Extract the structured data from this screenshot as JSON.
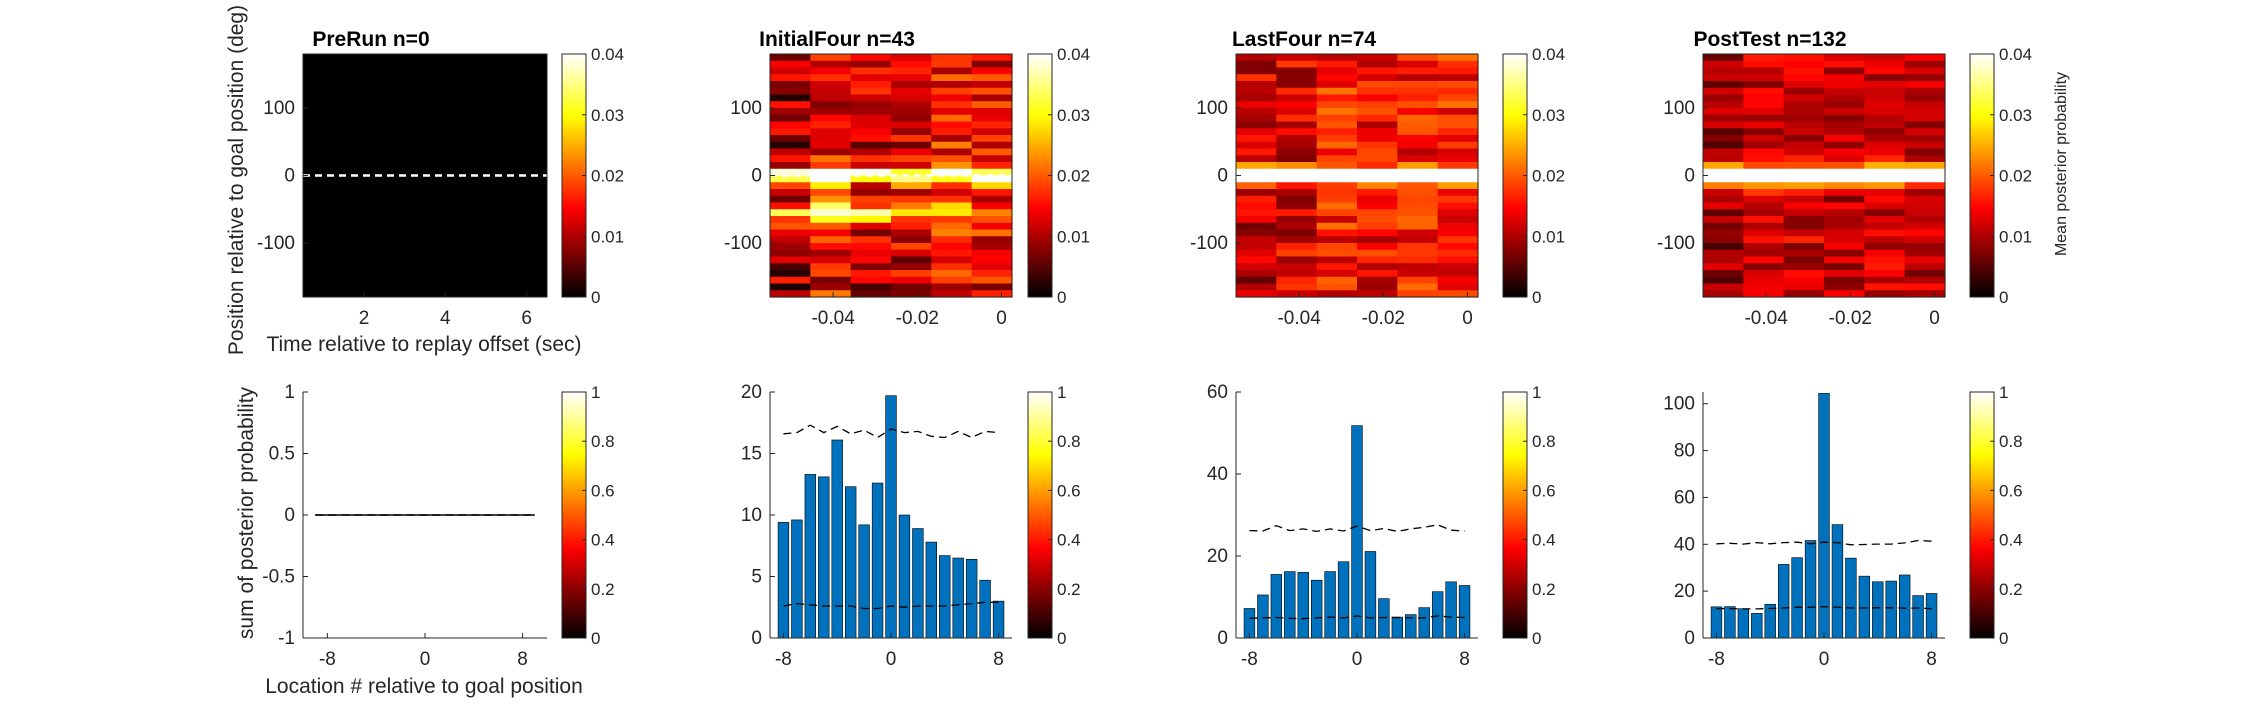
{
  "chart_data": [
    {
      "type": "heatmap",
      "title": "PreRun n=0",
      "xlabel": "Time relative to replay offset (sec)",
      "ylabel": "Position relative to goal position (deg)",
      "xticks": [
        "2",
        "4",
        "6"
      ],
      "yticks": [
        "100",
        "0",
        "-100"
      ],
      "xlim": [
        0.5,
        6.5
      ],
      "ylim": [
        -180,
        180
      ],
      "reference_line_y": 0,
      "values": "all 0",
      "colorbar": {
        "ticks": [
          "0",
          "0.01",
          "0.02",
          "0.03",
          "0.04"
        ],
        "range": [
          0,
          0.04
        ],
        "title": ""
      }
    },
    {
      "type": "heatmap",
      "title": "InitialFour n=43",
      "xticks": [
        "-0.04",
        "-0.02",
        "0"
      ],
      "yticks": [
        "100",
        "0",
        "-100"
      ],
      "xlim": [
        -0.055,
        0.0025
      ],
      "ylim": [
        -180,
        180
      ],
      "reference_line_y": 0,
      "colorbar": {
        "ticks": [
          "0",
          "0.01",
          "0.02",
          "0.03",
          "0.04"
        ],
        "range": [
          0,
          0.04
        ],
        "title": ""
      }
    },
    {
      "type": "heatmap",
      "title": "LastFour n=74",
      "xticks": [
        "-0.04",
        "-0.02",
        "0"
      ],
      "yticks": [
        "100",
        "0",
        "-100"
      ],
      "xlim": [
        -0.055,
        0.0025
      ],
      "ylim": [
        -180,
        180
      ],
      "colorbar": {
        "ticks": [
          "0",
          "0.01",
          "0.02",
          "0.03",
          "0.04"
        ],
        "range": [
          0,
          0.04
        ],
        "title": ""
      }
    },
    {
      "type": "heatmap",
      "title": "PostTest n=132",
      "xticks": [
        "-0.04",
        "-0.02",
        "0"
      ],
      "yticks": [
        "100",
        "0",
        "-100"
      ],
      "xlim": [
        -0.055,
        0.0025
      ],
      "ylim": [
        -180,
        180
      ],
      "colorbar": {
        "ticks": [
          "0",
          "0.01",
          "0.02",
          "0.03",
          "0.04"
        ],
        "range": [
          0,
          0.04
        ],
        "title": "Mean posterior probability"
      }
    },
    {
      "type": "bar",
      "xlabel": "Location # relative to goal position",
      "ylabel": "sum of posterior probability",
      "xticks": [
        "-8",
        "0",
        "8"
      ],
      "yticks": [
        "1",
        "0.5",
        "0",
        "-0.5",
        "-1"
      ],
      "xlim": [
        -10,
        10
      ],
      "ylim": [
        -1,
        1
      ],
      "categories": [
        -9,
        -8,
        -7,
        -6,
        -5,
        -4,
        -3,
        -2,
        -1,
        0,
        1,
        2,
        3,
        4,
        5,
        6,
        7,
        8,
        9
      ],
      "values": [
        0,
        0,
        0,
        0,
        0,
        0,
        0,
        0,
        0,
        0,
        0,
        0,
        0,
        0,
        0,
        0,
        0,
        0,
        0
      ],
      "upper_dashed": [
        0,
        0,
        0,
        0,
        0,
        0,
        0,
        0,
        0,
        0,
        0,
        0,
        0,
        0,
        0,
        0,
        0,
        0,
        0
      ],
      "lower_dashed": [
        0,
        0,
        0,
        0,
        0,
        0,
        0,
        0,
        0,
        0,
        0,
        0,
        0,
        0,
        0,
        0,
        0,
        0,
        0
      ],
      "colorbar": {
        "ticks": [
          "0",
          "0.2",
          "0.4",
          "0.6",
          "0.8",
          "1"
        ],
        "range": [
          0,
          1
        ]
      }
    },
    {
      "type": "bar",
      "xticks": [
        "-8",
        "0",
        "8"
      ],
      "yticks": [
        "20",
        "15",
        "10",
        "5",
        "0"
      ],
      "xlim": [
        -9,
        9
      ],
      "ylim": [
        0,
        20
      ],
      "categories": [
        -8,
        -7,
        -6,
        -5,
        -4,
        -3,
        -2,
        -1,
        0,
        1,
        2,
        3,
        4,
        5,
        6,
        7,
        8
      ],
      "values": [
        9.4,
        9.6,
        13.3,
        13.1,
        16.1,
        12.3,
        9.2,
        12.6,
        19.7,
        10.0,
        8.9,
        7.8,
        6.7,
        6.5,
        6.4,
        4.7,
        3.0
      ],
      "upper_dashed": [
        16.6,
        16.7,
        17.3,
        16.7,
        17.2,
        16.6,
        16.9,
        16.3,
        17.0,
        16.7,
        16.8,
        16.4,
        16.3,
        16.8,
        16.3,
        16.8,
        16.7
      ],
      "lower_dashed": [
        2.6,
        2.8,
        2.7,
        2.6,
        2.6,
        2.6,
        2.4,
        2.4,
        2.6,
        2.5,
        2.6,
        2.6,
        2.6,
        2.7,
        2.8,
        2.9,
        2.9
      ],
      "colorbar": {
        "ticks": [
          "0",
          "0.2",
          "0.4",
          "0.6",
          "0.8",
          "1"
        ],
        "range": [
          0,
          1
        ]
      }
    },
    {
      "type": "bar",
      "xticks": [
        "-8",
        "0",
        "8"
      ],
      "yticks": [
        "60",
        "40",
        "20",
        "0"
      ],
      "xlim": [
        -9,
        9
      ],
      "ylim": [
        0,
        60
      ],
      "categories": [
        -8,
        -7,
        -6,
        -5,
        -4,
        -3,
        -2,
        -1,
        0,
        1,
        2,
        3,
        4,
        5,
        6,
        7,
        8
      ],
      "values": [
        7.2,
        10.5,
        15.5,
        16.2,
        16.0,
        14.1,
        16.2,
        18.6,
        51.8,
        21.1,
        9.6,
        5.1,
        5.7,
        7.4,
        11.3,
        13.7,
        12.8
      ],
      "upper_dashed": [
        26.2,
        26.1,
        27.4,
        26.2,
        26.6,
        26.0,
        26.6,
        26.1,
        27.3,
        26.2,
        26.7,
        26.0,
        26.6,
        27.0,
        27.6,
        26.3,
        26.1
      ],
      "lower_dashed": [
        4.8,
        4.9,
        5.0,
        4.8,
        4.7,
        4.9,
        5.1,
        4.9,
        5.4,
        4.9,
        5.0,
        5.0,
        4.9,
        4.9,
        5.4,
        5.1,
        5.0
      ],
      "colorbar": {
        "ticks": [
          "0",
          "0.2",
          "0.4",
          "0.6",
          "0.8",
          "1"
        ],
        "range": [
          0,
          1
        ]
      }
    },
    {
      "type": "bar",
      "xticks": [
        "-8",
        "0",
        "8"
      ],
      "yticks": [
        "100",
        "80",
        "60",
        "40",
        "20",
        "0"
      ],
      "xlim": [
        -9,
        9
      ],
      "ylim": [
        0,
        105
      ],
      "categories": [
        -8,
        -7,
        -6,
        -5,
        -4,
        -3,
        -2,
        -1,
        0,
        1,
        2,
        3,
        4,
        5,
        6,
        7,
        8
      ],
      "values": [
        13.3,
        13.4,
        12.5,
        10.5,
        14.4,
        31.4,
        34.3,
        41.6,
        104.4,
        48.4,
        34.1,
        26.4,
        24.0,
        24.3,
        26.9,
        18.1,
        19.0
      ],
      "upper_dashed": [
        40.2,
        40.4,
        40.1,
        40.7,
        40.2,
        40.7,
        40.9,
        40.2,
        40.9,
        40.7,
        39.8,
        39.9,
        40.1,
        40.1,
        40.6,
        41.6,
        41.3
      ],
      "lower_dashed": [
        12.5,
        12.6,
        12.4,
        12.4,
        12.6,
        12.8,
        13.1,
        13.1,
        13.4,
        13.2,
        12.8,
        12.8,
        12.9,
        12.9,
        12.7,
        12.8,
        12.5
      ],
      "colorbar": {
        "ticks": [
          "0",
          "0.2",
          "0.4",
          "0.6",
          "0.8",
          "1"
        ],
        "range": [
          0,
          1
        ]
      }
    }
  ]
}
